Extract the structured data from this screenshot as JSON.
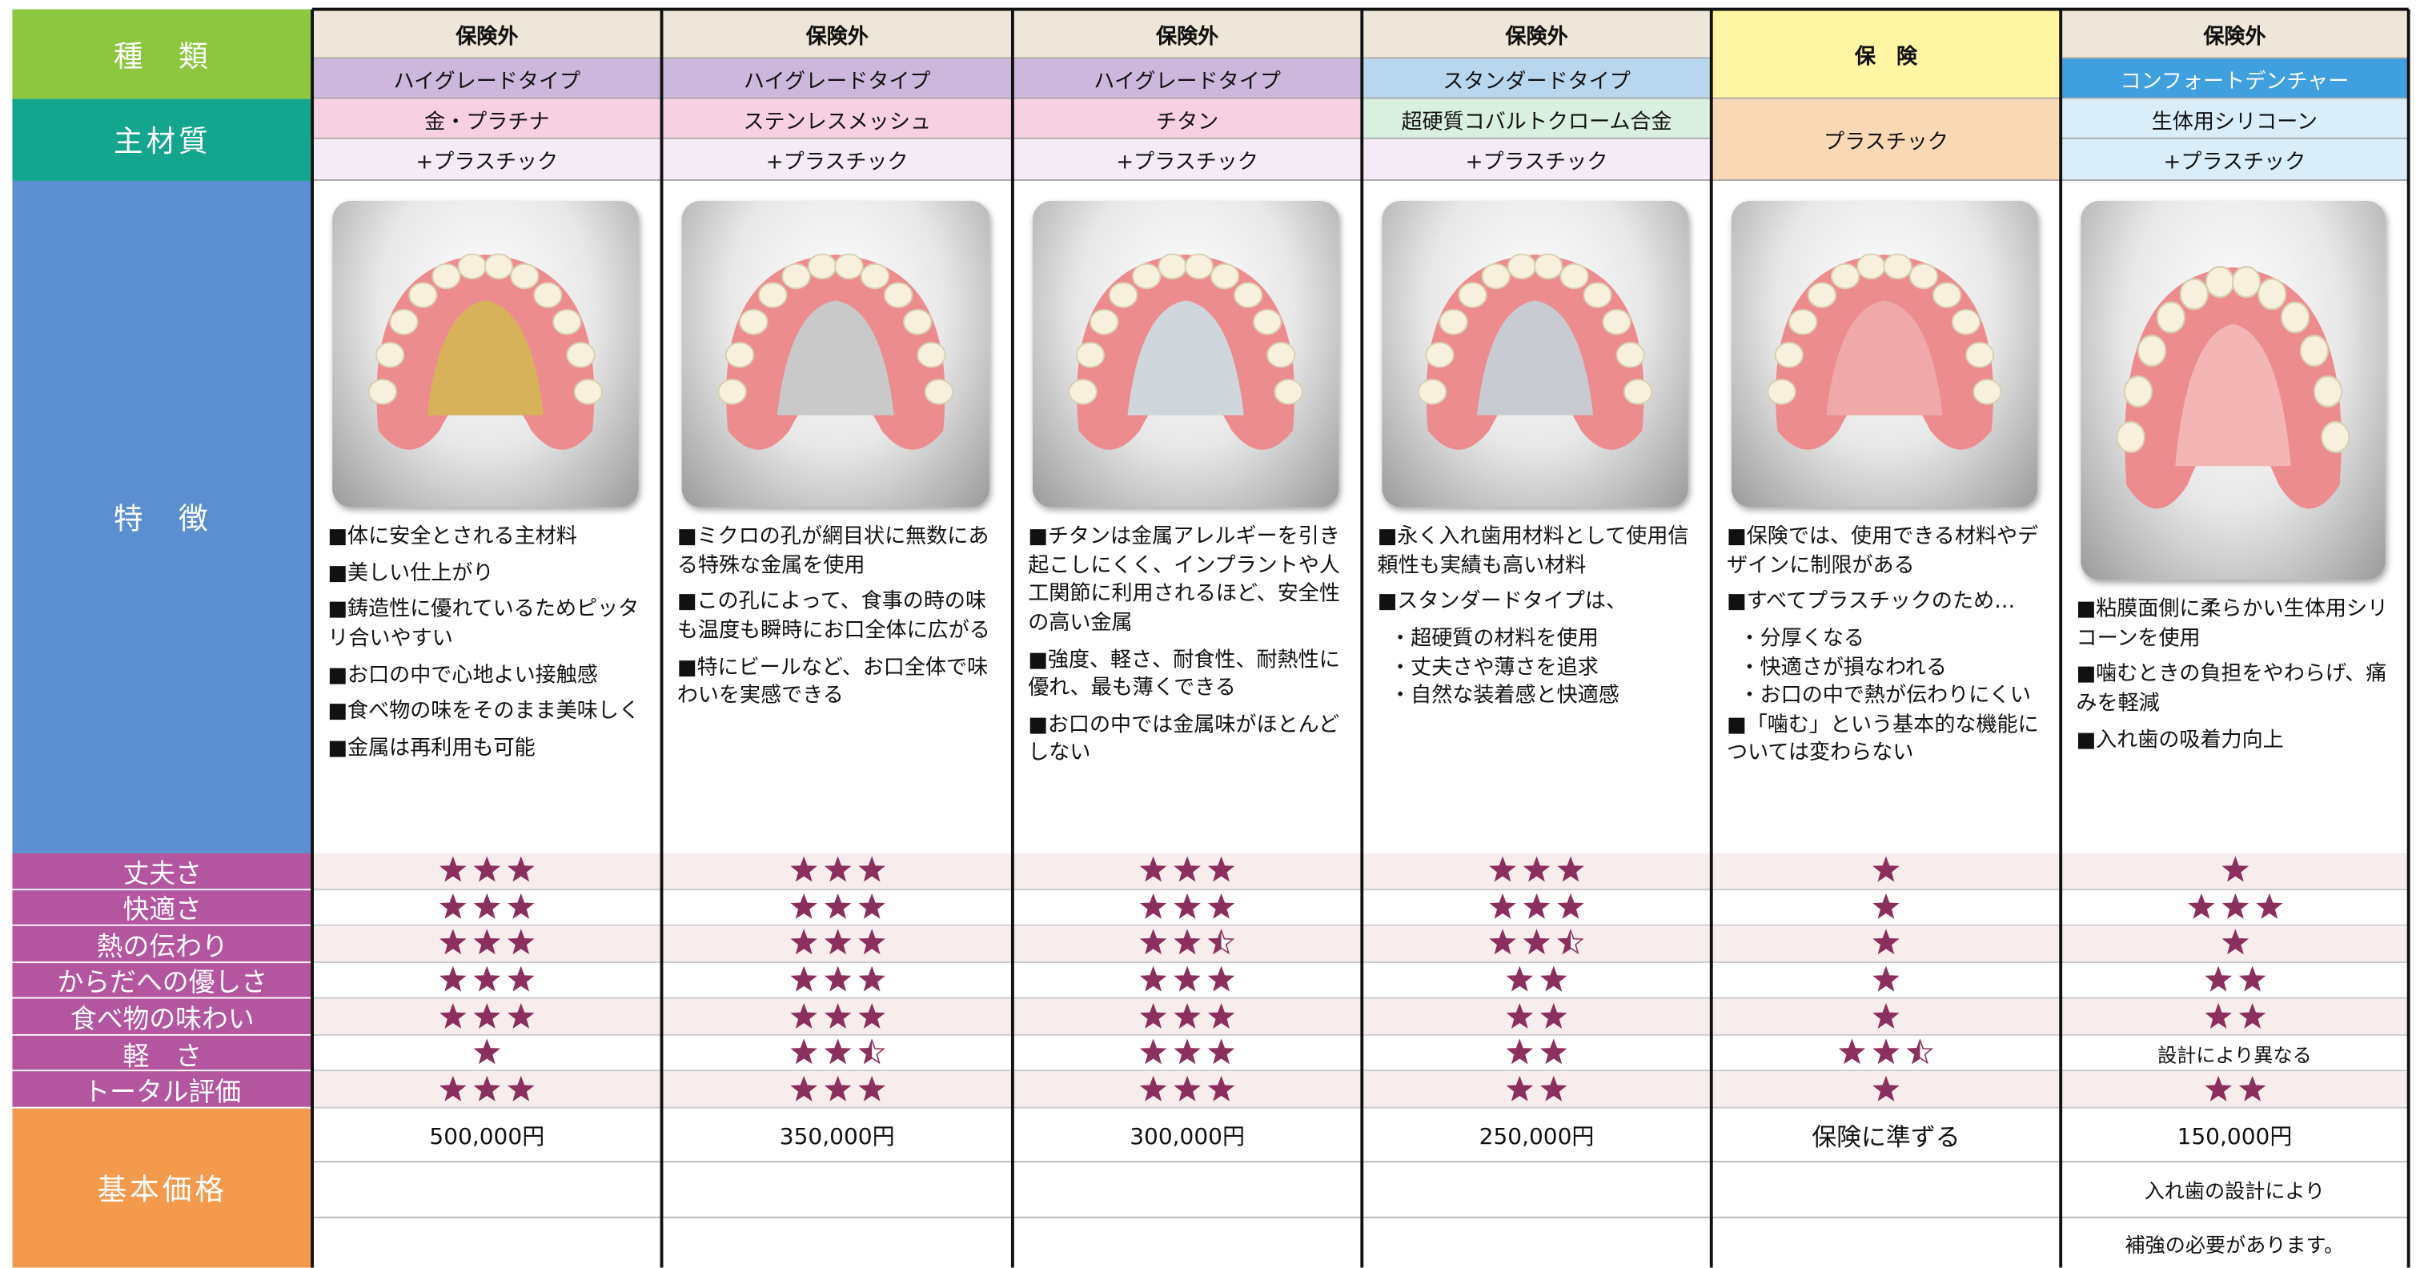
{
  "labels": {
    "type": "種　類",
    "material": "主材質",
    "features": "特　徴",
    "price": "基本価格"
  },
  "rating_labels": [
    "丈夫さ",
    "快適さ",
    "熱の伝わり",
    "からだへの優しさ",
    "食べ物の味わい",
    "軽　さ",
    "トータル評価"
  ],
  "columns": [
    {
      "insurance": "保険外",
      "type": "ハイグレードタイプ",
      "material": "金・プラチナ",
      "material_sub": "+プラスチック",
      "features": [
        "■体に安全とされる主材料",
        "■美しい仕上がり",
        "■鋳造性に優れているためピッタリ合いやすい",
        "■お口の中で心地よい接触感",
        "■食べ物の味をそのまま美味しく",
        "■金属は再利用も可能"
      ],
      "ratings": [
        3,
        3,
        3,
        3,
        3,
        1,
        3
      ],
      "price": "500,000円"
    },
    {
      "insurance": "保険外",
      "type": "ハイグレードタイプ",
      "material": "ステンレスメッシュ",
      "material_sub": "+プラスチック",
      "features": [
        "■ミクロの孔が網目状に無数にある特殊な金属を使用",
        "■この孔によって、食事の時の味も温度も瞬時にお口全体に広がる",
        "■特にビールなど、お口全体で味わいを実感できる"
      ],
      "ratings": [
        3,
        3,
        3,
        3,
        3,
        2.5,
        3
      ],
      "price": "350,000円"
    },
    {
      "insurance": "保険外",
      "type": "ハイグレードタイプ",
      "material": "チタン",
      "material_sub": "+プラスチック",
      "features": [
        "■チタンは金属アレルギーを引き起こしにくく、インプラントや人工関節に利用されるほど、安全性の高い金属",
        "■強度、軽さ、耐食性、耐熱性に優れ、最も薄くできる",
        "■お口の中では金属味がほとんどしない"
      ],
      "ratings": [
        3,
        3,
        2.5,
        3,
        3,
        3,
        3
      ],
      "price": "300,000円"
    },
    {
      "insurance": "保険外",
      "type": "スタンダードタイプ",
      "material": "超硬質コバルトクローム合金",
      "material_sub": "+プラスチック",
      "features": [
        "■永く入れ歯用材料として使用信頼性も実績も高い材料",
        "■スタンダードタイプは、",
        "・超硬質の材料を使用",
        "・丈夫さや薄さを追求",
        "・自然な装着感と快適感"
      ],
      "ratings": [
        3,
        3,
        2.5,
        2,
        2,
        2,
        2
      ],
      "price": "250,000円"
    },
    {
      "insurance": "保　険",
      "material": "プラスチック",
      "features": [
        "■保険では、使用できる材料やデザインに制限がある",
        "■すべてプラスチックのため…",
        "・分厚くなる",
        "・快適さが損なわれる",
        "・お口の中で熱が伝わりにくい",
        "■「噛む」という基本的な機能については変わらない"
      ],
      "ratings": [
        1,
        1,
        1,
        1,
        1,
        2.5,
        1
      ],
      "price": "保険に準ずる"
    },
    {
      "insurance": "保険外",
      "type": "コンフォートデンチャー",
      "material": "生体用シリコーン",
      "material_sub": "+プラスチック",
      "features": [
        "■粘膜面側に柔らかい生体用シリコーンを使用",
        "■噛むときの負担をやわらげ、痛みを軽減",
        "■入れ歯の吸着力向上"
      ],
      "ratings": [
        1,
        3,
        1,
        2,
        2,
        "設計により異なる",
        2
      ],
      "price": "150,000円",
      "price_notes": [
        "入れ歯の設計により",
        "補強の必要があります。"
      ]
    }
  ]
}
